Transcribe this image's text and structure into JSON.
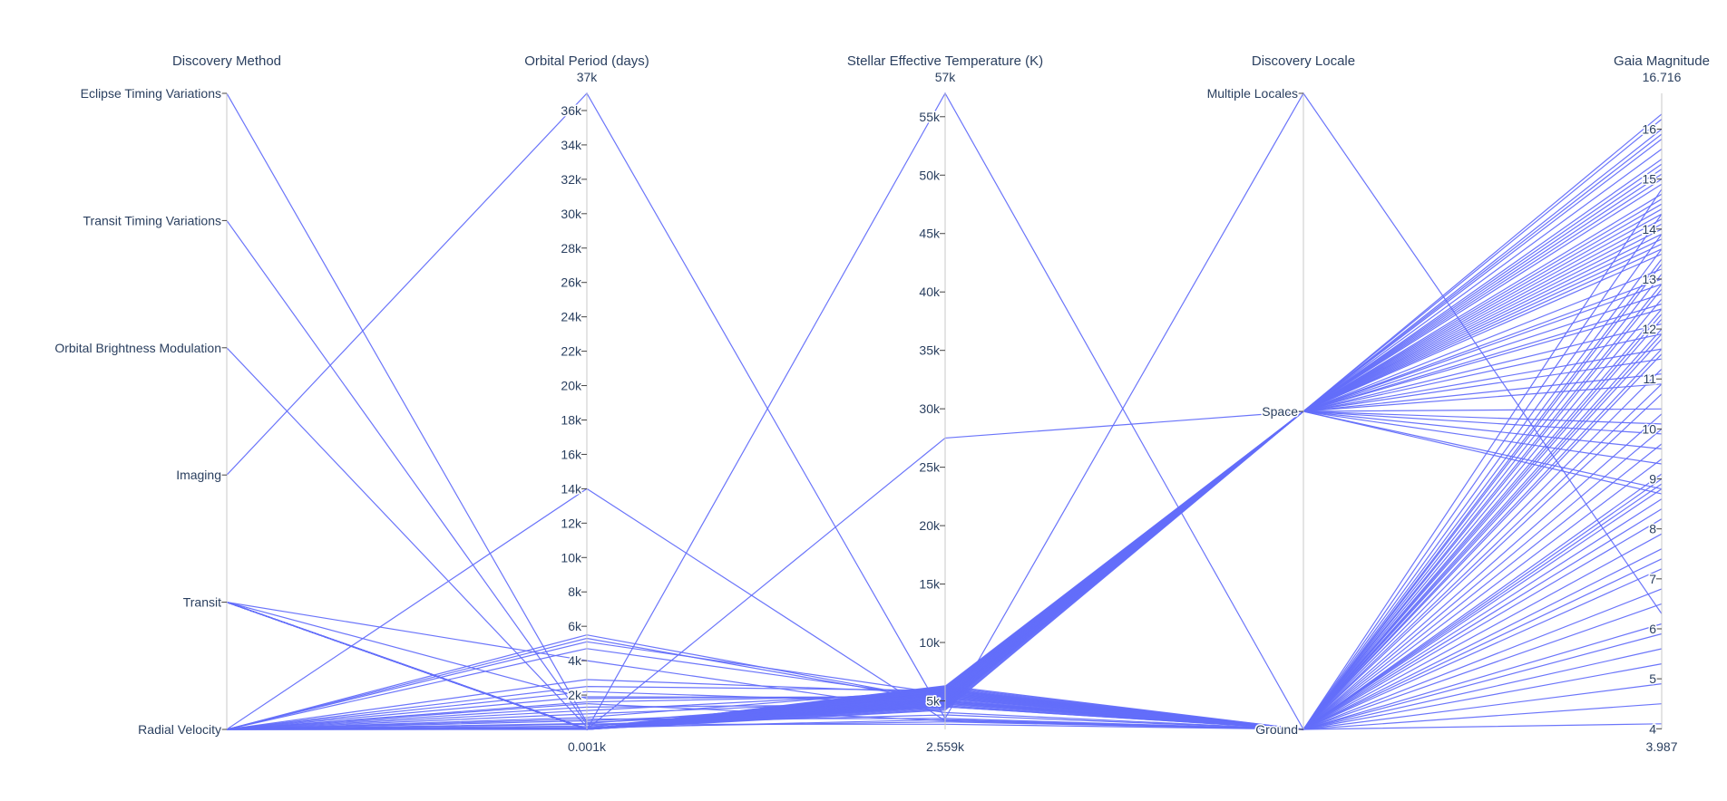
{
  "chart_data": {
    "type": "parallel_coordinates",
    "line_color": "#636efa",
    "dimensions": [
      {
        "key": "method",
        "label": "Discovery Method",
        "kind": "categorical",
        "categories": [
          "Radial Velocity",
          "Transit",
          "Imaging",
          "Orbital Brightness Modulation",
          "Transit Timing Variations",
          "Eclipse Timing Variations"
        ]
      },
      {
        "key": "period",
        "label": "Orbital Period (days)",
        "kind": "numeric",
        "range": [
          1,
          37000
        ],
        "min_label": "0.001k",
        "max_label": "37k",
        "ticks": [
          {
            "v": 2000,
            "t": "2k"
          },
          {
            "v": 4000,
            "t": "4k"
          },
          {
            "v": 6000,
            "t": "6k"
          },
          {
            "v": 8000,
            "t": "8k"
          },
          {
            "v": 10000,
            "t": "10k"
          },
          {
            "v": 12000,
            "t": "12k"
          },
          {
            "v": 14000,
            "t": "14k"
          },
          {
            "v": 16000,
            "t": "16k"
          },
          {
            "v": 18000,
            "t": "18k"
          },
          {
            "v": 20000,
            "t": "20k"
          },
          {
            "v": 22000,
            "t": "22k"
          },
          {
            "v": 24000,
            "t": "24k"
          },
          {
            "v": 26000,
            "t": "26k"
          },
          {
            "v": 28000,
            "t": "28k"
          },
          {
            "v": 30000,
            "t": "30k"
          },
          {
            "v": 32000,
            "t": "32k"
          },
          {
            "v": 34000,
            "t": "34k"
          },
          {
            "v": 36000,
            "t": "36k"
          }
        ]
      },
      {
        "key": "teff",
        "label": "Stellar Effective Temperature (K)",
        "kind": "numeric",
        "range": [
          2559,
          57000
        ],
        "min_label": "2.559k",
        "max_label": "57k",
        "ticks": [
          {
            "v": 5000,
            "t": "5k"
          },
          {
            "v": 10000,
            "t": "10k"
          },
          {
            "v": 15000,
            "t": "15k"
          },
          {
            "v": 20000,
            "t": "20k"
          },
          {
            "v": 25000,
            "t": "25k"
          },
          {
            "v": 30000,
            "t": "30k"
          },
          {
            "v": 35000,
            "t": "35k"
          },
          {
            "v": 40000,
            "t": "40k"
          },
          {
            "v": 45000,
            "t": "45k"
          },
          {
            "v": 50000,
            "t": "50k"
          },
          {
            "v": 55000,
            "t": "55k"
          }
        ]
      },
      {
        "key": "locale",
        "label": "Discovery Locale",
        "kind": "categorical",
        "categories": [
          "Ground",
          "Space",
          "Multiple Locales"
        ]
      },
      {
        "key": "gaia",
        "label": "Gaia Magnitude",
        "kind": "numeric",
        "range": [
          3.987,
          16.716
        ],
        "min_label": "3.987",
        "max_label": "16.716",
        "ticks": [
          {
            "v": 4,
            "t": "4"
          },
          {
            "v": 5,
            "t": "5"
          },
          {
            "v": 6,
            "t": "6"
          },
          {
            "v": 7,
            "t": "7"
          },
          {
            "v": 8,
            "t": "8"
          },
          {
            "v": 9,
            "t": "9"
          },
          {
            "v": 10,
            "t": "10"
          },
          {
            "v": 11,
            "t": "11"
          },
          {
            "v": 12,
            "t": "12"
          },
          {
            "v": 13,
            "t": "13"
          },
          {
            "v": 14,
            "t": "14"
          },
          {
            "v": 15,
            "t": "15"
          },
          {
            "v": 16,
            "t": "16"
          }
        ]
      }
    ],
    "rows": [
      [
        "Eclipse Timing Variations",
        400,
        4500,
        "Ground",
        14.8
      ],
      [
        "Transit Timing Variations",
        300,
        3000,
        "Ground",
        14.3
      ],
      [
        "Orbital Brightness Modulation",
        150,
        3200,
        "Ground",
        13.9
      ],
      [
        "Imaging",
        37000,
        3500,
        "Multiple Locales",
        6.3
      ],
      [
        "Radial Velocity",
        14000,
        3300,
        "Ground",
        8.8
      ],
      [
        "Radial Velocity",
        11,
        27500,
        "Space",
        16.2
      ],
      [
        "Radial Velocity",
        2,
        57000,
        "Ground",
        10.0
      ],
      [
        "Radial Velocity",
        5500,
        5000,
        "Ground",
        7.6
      ],
      [
        "Radial Velocity",
        5300,
        4900,
        "Ground",
        5.3
      ],
      [
        "Radial Velocity",
        5100,
        5600,
        "Ground",
        6.8
      ],
      [
        "Radial Velocity",
        4700,
        5200,
        "Ground",
        7.2
      ],
      [
        "Radial Velocity",
        2900,
        5700,
        "Ground",
        5.9
      ],
      [
        "Radial Velocity",
        2500,
        5900,
        "Ground",
        6.5
      ],
      [
        "Radial Velocity",
        2200,
        4800,
        "Ground",
        7.9
      ],
      [
        "Radial Velocity",
        1900,
        5300,
        "Ground",
        8.2
      ],
      [
        "Radial Velocity",
        1600,
        5500,
        "Ground",
        8.6
      ],
      [
        "Radial Velocity",
        1300,
        4700,
        "Ground",
        9.1
      ],
      [
        "Radial Velocity",
        1100,
        5800,
        "Ground",
        9.4
      ],
      [
        "Radial Velocity",
        900,
        5100,
        "Ground",
        9.7
      ],
      [
        "Radial Velocity",
        700,
        6000,
        "Ground",
        10.3
      ],
      [
        "Radial Velocity",
        500,
        4600,
        "Ground",
        10.7
      ],
      [
        "Radial Velocity",
        350,
        5400,
        "Ground",
        11.2
      ],
      [
        "Radial Velocity",
        200,
        5000,
        "Ground",
        11.6
      ],
      [
        "Radial Velocity",
        120,
        5900,
        "Ground",
        4.1
      ],
      [
        "Radial Velocity",
        60,
        4500,
        "Ground",
        4.5
      ],
      [
        "Radial Velocity",
        30,
        5600,
        "Ground",
        4.9
      ],
      [
        "Radial Velocity",
        15,
        5200,
        "Ground",
        5.6
      ],
      [
        "Radial Velocity",
        8,
        5700,
        "Ground",
        6.1
      ],
      [
        "Radial Velocity",
        4,
        4900,
        "Ground",
        7.4
      ],
      [
        "Radial Velocity",
        600,
        3500,
        "Ground",
        8.4
      ],
      [
        "Radial Velocity",
        300,
        3800,
        "Ground",
        12.3
      ],
      [
        "Radial Velocity",
        80,
        3400,
        "Ground",
        12.8
      ],
      [
        "Radial Velocity",
        1500,
        3300,
        "Ground",
        13.3
      ],
      [
        "Transit",
        4,
        5800,
        "Ground",
        12.0
      ],
      [
        "Transit",
        3,
        6100,
        "Ground",
        11.5
      ],
      [
        "Transit",
        2.5,
        5500,
        "Ground",
        12.6
      ],
      [
        "Transit",
        5,
        5300,
        "Ground",
        13.1
      ],
      [
        "Transit",
        3.5,
        6300,
        "Ground",
        11.9
      ],
      [
        "Transit",
        2,
        5900,
        "Ground",
        12.4
      ],
      [
        "Transit",
        6,
        4800,
        "Ground",
        13.6
      ],
      [
        "Transit",
        1.5,
        6000,
        "Ground",
        11.8
      ],
      [
        "Transit",
        4.5,
        5700,
        "Ground",
        12.9
      ],
      [
        "Transit",
        2.8,
        6200,
        "Ground",
        10.9
      ],
      [
        "Transit",
        3.2,
        5000,
        "Ground",
        13.4
      ],
      [
        "Transit",
        2.2,
        5600,
        "Ground",
        12.2
      ],
      [
        "Transit",
        1800,
        5400,
        "Ground",
        9.0
      ],
      [
        "Transit",
        4000,
        4000,
        "Ground",
        8.9
      ],
      [
        "Transit",
        5,
        4200,
        "Space",
        14.6
      ],
      [
        "Transit",
        8,
        5100,
        "Space",
        15.1
      ],
      [
        "Transit",
        12,
        5500,
        "Space",
        15.6
      ],
      [
        "Transit",
        3,
        4500,
        "Space",
        14.2
      ],
      [
        "Transit",
        20,
        6000,
        "Space",
        13.7
      ],
      [
        "Transit",
        6,
        5300,
        "Space",
        15.8
      ],
      [
        "Transit",
        9,
        5800,
        "Space",
        16.0
      ],
      [
        "Transit",
        4,
        4900,
        "Space",
        14.9
      ],
      [
        "Transit",
        15,
        5200,
        "Space",
        13.5
      ],
      [
        "Transit",
        2,
        6100,
        "Space",
        14.0
      ],
      [
        "Transit",
        30,
        5700,
        "Space",
        15.3
      ],
      [
        "Transit",
        7,
        4300,
        "Space",
        13.0
      ],
      [
        "Transit",
        11,
        5000,
        "Space",
        12.7
      ],
      [
        "Transit",
        3.5,
        5900,
        "Space",
        14.4
      ],
      [
        "Transit",
        5.5,
        4700,
        "Space",
        15.4
      ],
      [
        "Transit",
        18,
        5400,
        "Space",
        12.4
      ],
      [
        "Transit",
        25,
        6200,
        "Space",
        13.2
      ],
      [
        "Transit",
        4.2,
        5600,
        "Space",
        14.7
      ],
      [
        "Transit",
        10,
        4600,
        "Space",
        11.9
      ],
      [
        "Transit",
        2.7,
        5100,
        "Space",
        15.0
      ],
      [
        "Transit",
        6.5,
        5750,
        "Space",
        13.9
      ],
      [
        "Transit",
        14,
        4400,
        "Space",
        12.1
      ],
      [
        "Transit",
        1.8,
        6050,
        "Space",
        14.1
      ],
      [
        "Transit",
        8.5,
        5250,
        "Space",
        11.4
      ],
      [
        "Transit",
        13,
        5900,
        "Space",
        16.3
      ],
      [
        "Transit",
        3.3,
        4800,
        "Space",
        15.9
      ],
      [
        "Transit",
        22,
        5550,
        "Space",
        10.9
      ],
      [
        "Transit",
        5.8,
        5150,
        "Space",
        13.6
      ],
      [
        "Transit",
        9.5,
        4650,
        "Space",
        14.5
      ],
      [
        "Transit",
        2.4,
        5850,
        "Space",
        12.9
      ],
      [
        "Transit",
        16,
        6150,
        "Space",
        11.6
      ],
      [
        "Transit",
        7.5,
        4950,
        "Space",
        15.2
      ],
      [
        "Transit",
        4.8,
        5450,
        "Space",
        10.4
      ],
      [
        "Transit",
        35,
        5050,
        "Space",
        10.1
      ],
      [
        "Transit",
        6,
        6000,
        "Space",
        9.9
      ],
      [
        "Transit",
        12,
        5350,
        "Space",
        9.6
      ],
      [
        "Transit",
        3,
        4750,
        "Space",
        9.3
      ],
      [
        "Transit",
        40,
        5700,
        "Space",
        8.8
      ],
      [
        "Transit",
        9,
        4850,
        "Space",
        8.7
      ],
      [
        "Transit",
        2.6,
        6250,
        "Space",
        13.8
      ],
      [
        "Transit",
        17,
        5250,
        "Space",
        14.3
      ],
      [
        "Transit",
        5.2,
        5650,
        "Space",
        12.5
      ],
      [
        "Transit",
        11,
        4550,
        "Space",
        11.1
      ]
    ]
  }
}
